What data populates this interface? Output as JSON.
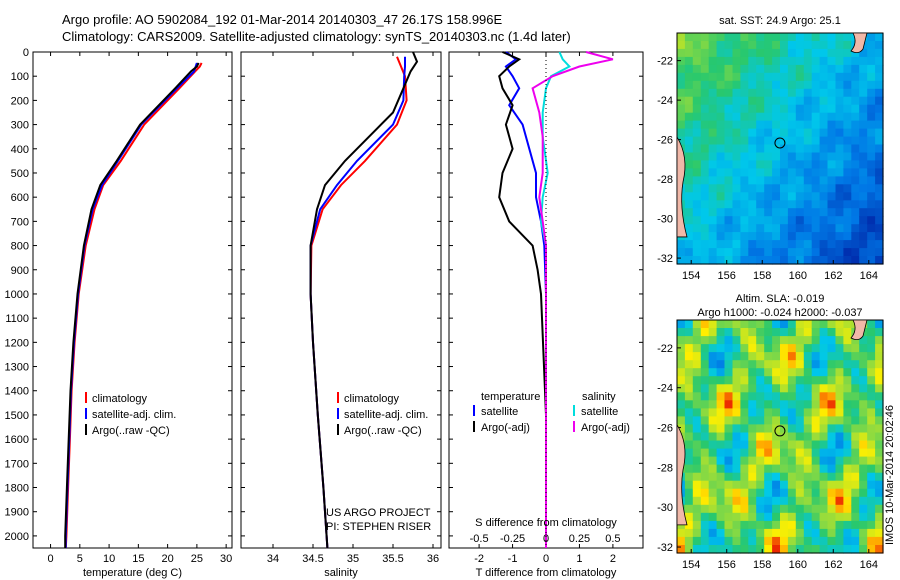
{
  "header": {
    "line1": "Argo profile: AO 5902084_192 01-Mar-2014 20140303_47 26.17S 158.996E",
    "line2": "Climatology: CARS2009. Satellite-adjusted climatology: synTS_20140303.nc (1.4d later)"
  },
  "credit": "US ARGO PROJECT\nPI: STEPHEN RISER",
  "stamp": "IMOS 10-Mar-2014 20:02:46",
  "colors": {
    "clim": "#ff0000",
    "sat": "#0000ff",
    "argo": "#000000",
    "sal_sat": "#00dddd",
    "sal_argo": "#ee00ee"
  },
  "chart_data": [
    {
      "type": "line",
      "xlabel": "temperature (deg C)",
      "ylim": [
        2050,
        0
      ],
      "xlim": [
        -3,
        31
      ],
      "xticks": [
        0,
        5,
        10,
        15,
        20,
        25,
        30
      ],
      "yticks": [
        0,
        100,
        200,
        300,
        400,
        500,
        600,
        700,
        800,
        900,
        1000,
        1100,
        1200,
        1300,
        1400,
        1500,
        1600,
        1700,
        1800,
        1900,
        2000
      ],
      "legend": [
        "climatology",
        "satellite-adj. clim.",
        "Argo(..raw -QC)"
      ],
      "series": [
        {
          "name": "climatology",
          "color": "clim",
          "y": [
            45,
            60,
            80,
            150,
            300,
            450,
            550,
            650,
            800,
            1000,
            1200,
            1400,
            1600,
            1800,
            2000,
            2050
          ],
          "values": [
            25.8,
            25.5,
            24.7,
            22.0,
            16.0,
            12.0,
            9.0,
            7.5,
            6.0,
            4.8,
            4.1,
            3.6,
            3.3,
            3.0,
            2.7,
            2.6
          ]
        },
        {
          "name": "satellite-adj. clim.",
          "color": "sat",
          "y": [
            45,
            60,
            80,
            150,
            300,
            450,
            550,
            650,
            800,
            1000,
            1200,
            1400,
            1600,
            1800,
            2000,
            2050
          ],
          "values": [
            25.0,
            24.8,
            24.5,
            21.6,
            15.5,
            11.5,
            8.8,
            7.2,
            5.8,
            4.7,
            4.0,
            3.5,
            3.2,
            2.9,
            2.6,
            2.6
          ]
        },
        {
          "name": "Argo(..raw -QC)",
          "color": "argo",
          "y": [
            45,
            60,
            80,
            150,
            300,
            450,
            550,
            650,
            800,
            1000,
            1200,
            1400,
            1600,
            1800,
            2000,
            2050
          ],
          "values": [
            25.3,
            25.0,
            24.0,
            21.3,
            15.3,
            11.3,
            8.5,
            7.0,
            5.7,
            4.6,
            3.9,
            3.4,
            3.1,
            2.8,
            2.5,
            2.5
          ]
        }
      ]
    },
    {
      "type": "line",
      "xlabel": "salinity",
      "ylim": [
        2050,
        0
      ],
      "xlim": [
        33.6,
        36.1
      ],
      "xticks": [
        34,
        34.5,
        35,
        35.5,
        36
      ],
      "legend": [
        "climatology",
        "satellite-adj. clim.",
        "Argo(..raw -QC)"
      ],
      "credit_lines": [
        "US ARGO PROJECT",
        "PI: STEPHEN RISER"
      ],
      "series": [
        {
          "name": "climatology",
          "color": "clim",
          "y": [
            20,
            60,
            100,
            200,
            300,
            450,
            550,
            650,
            800,
            1000,
            1200,
            1500,
            1800,
            2050
          ],
          "values": [
            35.55,
            35.6,
            35.65,
            35.67,
            35.55,
            35.15,
            34.85,
            34.62,
            34.48,
            34.47,
            34.5,
            34.56,
            34.63,
            34.68
          ]
        },
        {
          "name": "satellite-adj. clim.",
          "color": "sat",
          "y": [
            20,
            60,
            100,
            200,
            300,
            450,
            550,
            650,
            800,
            1000,
            1200,
            1500,
            1800,
            2050
          ],
          "values": [
            35.65,
            35.65,
            35.64,
            35.63,
            35.5,
            35.05,
            34.8,
            34.59,
            34.47,
            34.47,
            34.5,
            34.56,
            34.63,
            34.68
          ]
        },
        {
          "name": "Argo(..raw -QC)",
          "color": "argo",
          "y": [
            0,
            40,
            80,
            150,
            250,
            450,
            550,
            650,
            800,
            1000,
            1200,
            1500,
            1800,
            2050
          ],
          "values": [
            35.75,
            35.8,
            35.72,
            35.63,
            35.5,
            34.9,
            34.65,
            34.55,
            34.47,
            34.47,
            34.5,
            34.56,
            34.63,
            34.68
          ]
        }
      ]
    },
    {
      "type": "line",
      "xlabel": "T difference from climatology",
      "top_label": "S difference from climatology",
      "ylim": [
        2050,
        0
      ],
      "xlim": [
        -2.9,
        2.9
      ],
      "xticks": [
        -2,
        -1,
        0,
        1,
        2
      ],
      "sticks": [
        "-0.5",
        "-0.25",
        "0",
        "0.25",
        "0.5"
      ],
      "legend_headers": [
        "temperature",
        "salinity"
      ],
      "legend": [
        "satellite",
        "Argo(-adj)",
        "satellite",
        "Argo(-adj)"
      ],
      "series": [
        {
          "name": "satellite",
          "color": "sat",
          "y": [
            0,
            30,
            60,
            100,
            150,
            220,
            300,
            400,
            500,
            600,
            700,
            800,
            1000,
            1500,
            2050
          ],
          "values": [
            -1.2,
            -0.9,
            -1.2,
            -1.0,
            -0.8,
            -1.1,
            -0.7,
            -0.5,
            -0.3,
            -0.3,
            -0.15,
            -0.05,
            0,
            0,
            0
          ]
        },
        {
          "name": "Argo(-adj)",
          "color": "argo",
          "y": [
            0,
            30,
            60,
            100,
            150,
            220,
            300,
            400,
            500,
            600,
            700,
            800,
            900,
            1000,
            1500,
            2050
          ],
          "values": [
            -1.3,
            -0.8,
            -1.1,
            -1.4,
            -1.3,
            -1.0,
            -1.2,
            -1.0,
            -1.3,
            -1.4,
            -1.1,
            -0.4,
            -0.25,
            -0.15,
            0,
            0
          ]
        },
        {
          "name": "satellite",
          "color": "sal_sat",
          "y": [
            0,
            30,
            60,
            100,
            150,
            250,
            350,
            500,
            600,
            700,
            800,
            1000,
            1500,
            2050
          ],
          "values": [
            0.4,
            0.5,
            0.7,
            0.15,
            0,
            -0.1,
            -0.1,
            0.05,
            -0.1,
            -0.15,
            0,
            0,
            0,
            0
          ]
        },
        {
          "name": "Argo(-adj)",
          "color": "sal_argo",
          "y": [
            0,
            30,
            60,
            100,
            150,
            250,
            350,
            500,
            600,
            700,
            800,
            1000,
            1500,
            2050
          ],
          "values": [
            1.2,
            2.0,
            1.0,
            0.2,
            -0.4,
            -0.2,
            -0.1,
            -0.1,
            -0.2,
            -0.1,
            0,
            0,
            0,
            0
          ]
        }
      ]
    },
    {
      "type": "heatmap",
      "title": "sat. SST: 24.9 Argo: 25.1",
      "xticks": [
        154,
        156,
        158,
        160,
        162,
        164
      ],
      "yticks": [
        -22,
        -24,
        -26,
        -28,
        -30,
        -32
      ],
      "xlim": [
        153.2,
        164.8
      ],
      "ylim": [
        -32.3,
        -20.6
      ],
      "marker": [
        158.996,
        -26.17
      ]
    },
    {
      "type": "heatmap",
      "title_lines": [
        "Altim. SLA: -0.019",
        "Argo h1000: -0.024 h2000: -0.037"
      ],
      "xticks": [
        154,
        156,
        158,
        160,
        162,
        164
      ],
      "yticks": [
        -22,
        -24,
        -26,
        -28,
        -30,
        -32
      ],
      "xlim": [
        153.2,
        164.8
      ],
      "ylim": [
        -32.3,
        -20.6
      ],
      "marker": [
        158.996,
        -26.17
      ]
    }
  ]
}
